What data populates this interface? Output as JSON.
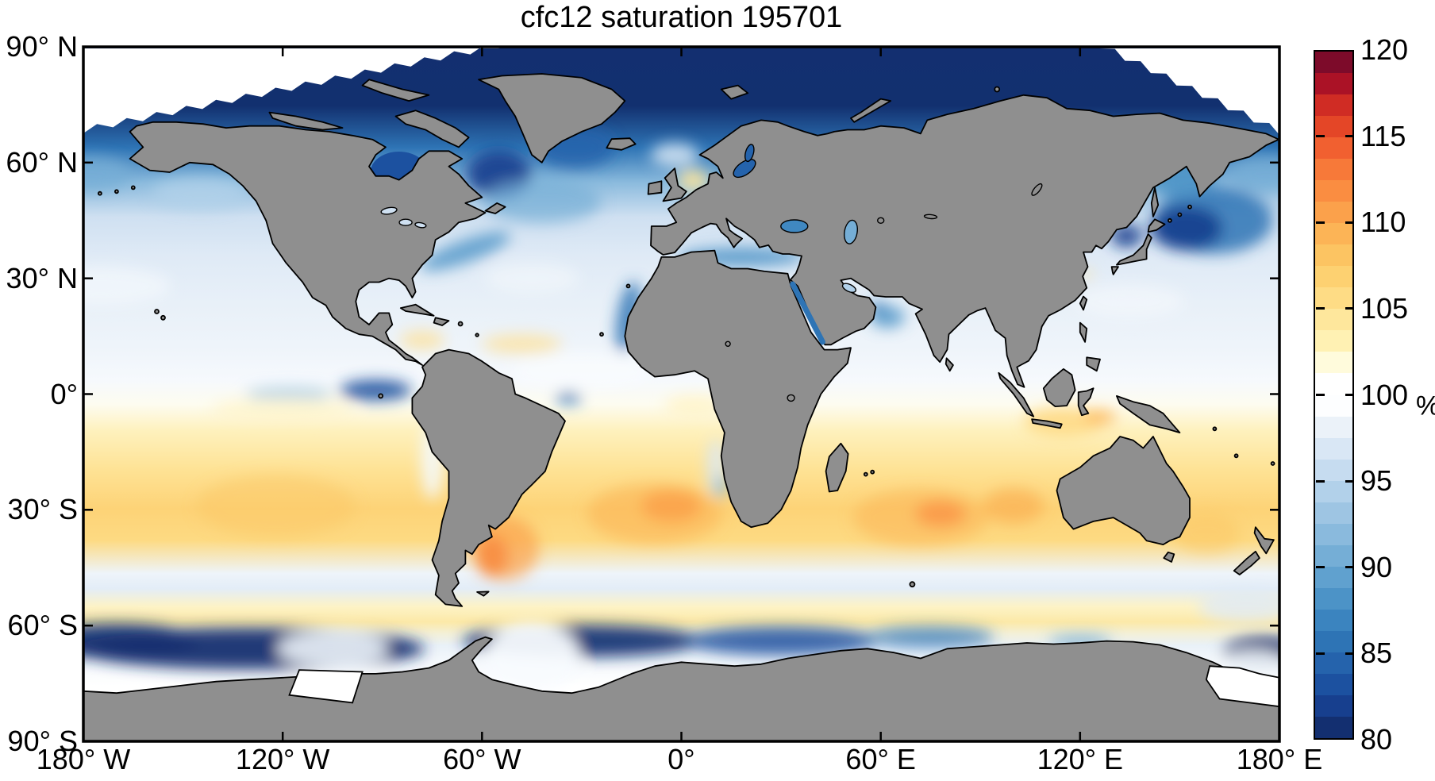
{
  "figure": {
    "title": "cfc12 saturation 195701",
    "background": "#ffffff",
    "land_color": "#8f8f8f",
    "coastline_color": "#000000",
    "frame_color": "#000000"
  },
  "axes": {
    "x_tick_labels": [
      "180° W",
      "120° W",
      "60° W",
      "0°",
      "60° E",
      "120° E",
      "180° E"
    ],
    "x_tick_lon": [
      -180,
      -120,
      -60,
      0,
      60,
      120,
      180
    ],
    "y_tick_labels": [
      "90° N",
      "60° N",
      "30° N",
      "0°",
      "30° S",
      "60° S",
      "90° S"
    ],
    "y_tick_lat": [
      90,
      60,
      30,
      0,
      -30,
      -60,
      -90
    ]
  },
  "colorbar": {
    "min": 80,
    "max": 120,
    "band_step": 1.25,
    "unit_label": "%",
    "tick_values": [
      120,
      115,
      110,
      105,
      100,
      95,
      90,
      85,
      80
    ],
    "tick_labels": [
      "120",
      "115",
      "110",
      "105",
      "100",
      "95",
      "90",
      "85",
      "80"
    ],
    "colors_low_to_high": [
      "#132f70",
      "#173f8e",
      "#1c51a0",
      "#2563ac",
      "#2e74b5",
      "#3b84bf",
      "#4c93c7",
      "#60a1cf",
      "#75aed6",
      "#8abadd",
      "#9ec5e3",
      "#b2d1ea",
      "#c6dcf0",
      "#d9e7f5",
      "#ebf2f9",
      "#fdfeff",
      "#ffffff",
      "#fffbdc",
      "#fff1b3",
      "#fee79c",
      "#fedc85",
      "#fdd171",
      "#fcc462",
      "#fcb456",
      "#fba14b",
      "#fa8d41",
      "#f77939",
      "#f16030",
      "#e44627",
      "#d02c24",
      "#ab1226",
      "#7d0b2a"
    ]
  },
  "chart_data": {
    "type": "heatmap",
    "title": "cfc12 saturation 195701",
    "variable": "cfc12 saturation",
    "time_stamp": "195701",
    "units": "%",
    "projection": "equirectangular world map; ocean field shaded, land gray with black coastlines",
    "x_axis": {
      "label": "longitude",
      "range_deg": [
        -180,
        180
      ],
      "tick_deg": [
        -180,
        -120,
        -60,
        0,
        60,
        120,
        180
      ]
    },
    "y_axis": {
      "label": "latitude",
      "range_deg": [
        -90,
        90
      ],
      "tick_deg": [
        90,
        60,
        30,
        0,
        -30,
        -60,
        -90
      ]
    },
    "color_axis": {
      "range": [
        80,
        120
      ],
      "levels": 32,
      "tick_step": 5,
      "white_centered_at": 100
    },
    "regions_approx_values": [
      {
        "region": "Arctic Ocean (north of 70N)",
        "value": 80.5
      },
      {
        "region": "Labrador Sea / Nordic Seas subpolar North Atlantic",
        "value": 84
      },
      {
        "region": "Hudson Bay and Baltic Sea",
        "value": 82
      },
      {
        "region": "Northwest Pacific (Oyashio / Sea of Okhotsk / Sea of Japan)",
        "value": 87
      },
      {
        "region": "North Pacific subtropics 20N-45N",
        "value": 96.5
      },
      {
        "region": "North Atlantic subtropics 20N-45N",
        "value": 96.5
      },
      {
        "region": "Gulf Stream band off North America",
        "value": 92
      },
      {
        "region": "Northern tropics 0-20N",
        "value": 98
      },
      {
        "region": "Caribbean / west tropical Atlantic patches",
        "value": 102
      },
      {
        "region": "Eastern equatorial Pacific upwelling tongue",
        "value": 88
      },
      {
        "region": "Coastal upwelling (Mauritania, Oman, NE Brazil, Peru edge)",
        "value": 88
      },
      {
        "region": "Southern tropics 0-15S",
        "value": 101.5
      },
      {
        "region": "Southern subtropical gyres 15S-40S",
        "value": 104.5
      },
      {
        "region": "Argentine shelf maximum",
        "value": 112
      },
      {
        "region": "South Atlantic / South Indian orange cores",
        "value": 108
      },
      {
        "region": "Subantarctic band 45S-52S",
        "value": 99
      },
      {
        "region": "Subantarctic yellow band 53S-60S",
        "value": 102
      },
      {
        "region": "Southern Ocean Antarctic divergence 60S-70S (Pacific/Atlantic sectors)",
        "value": 81
      },
      {
        "region": "Antarctic coastal shelves (Weddell, Ross)",
        "value": 100
      },
      {
        "region": "North Sea patch",
        "value": 103
      }
    ]
  }
}
